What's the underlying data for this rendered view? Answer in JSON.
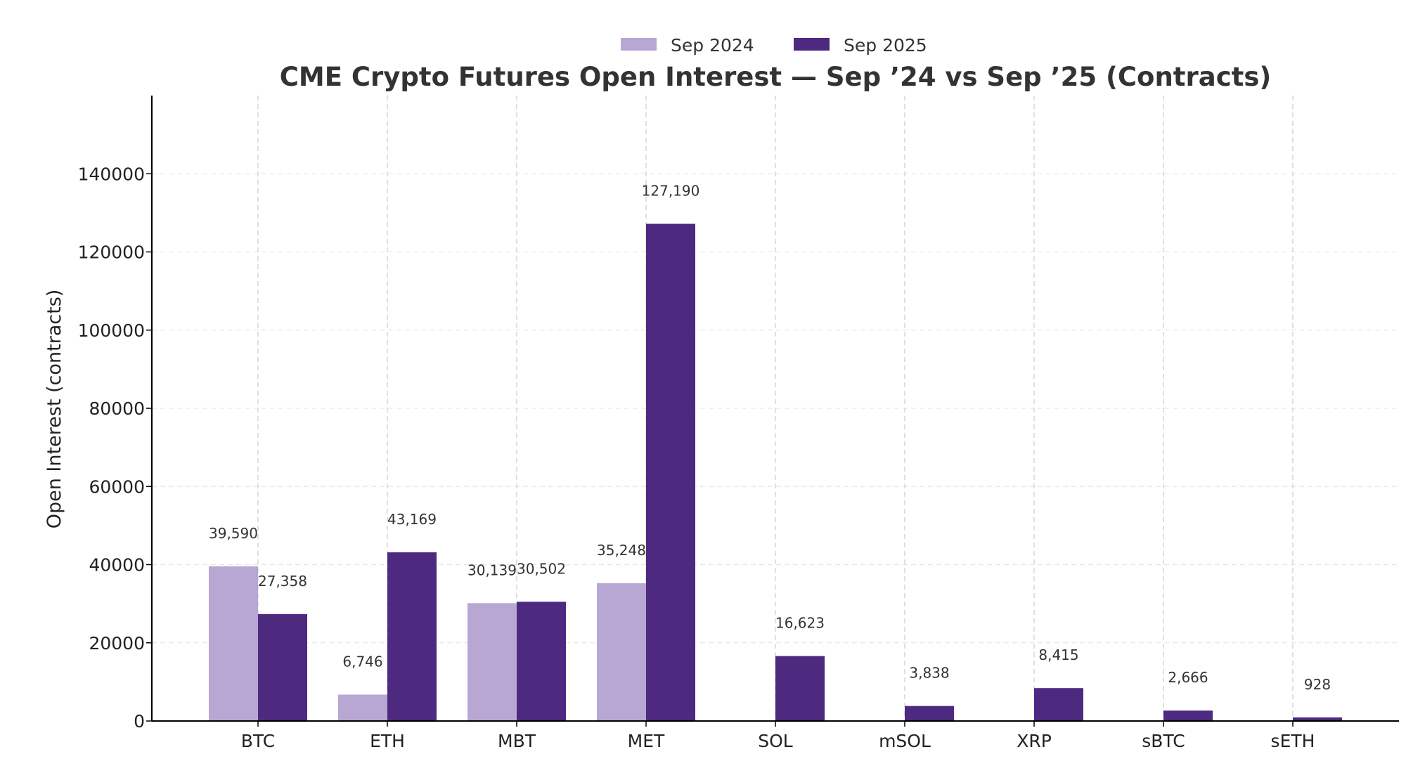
{
  "chart_data": {
    "type": "bar",
    "title": "CME Crypto Futures Open Interest — Sep ’24 vs Sep ’25 (Contracts)",
    "xlabel": "",
    "ylabel": "Open Interest (contracts)",
    "categories": [
      "BTC",
      "ETH",
      "MBT",
      "MET",
      "SOL",
      "mSOL",
      "XRP",
      "sBTC",
      "sETH"
    ],
    "series": [
      {
        "name": "Sep 2024",
        "color": "#b8a6d3",
        "values": [
          39590,
          6746,
          30139,
          35248,
          null,
          null,
          null,
          null,
          null
        ],
        "labels": [
          "39,590",
          "6,746",
          "30,139",
          "35,248",
          null,
          null,
          null,
          null,
          null
        ]
      },
      {
        "name": "Sep 2025",
        "color": "#4d2a80",
        "values": [
          27358,
          43169,
          30502,
          127190,
          16623,
          3838,
          8415,
          2666,
          928
        ],
        "labels": [
          "27,358",
          "43,169",
          "30,502",
          "127,190",
          "16,623",
          "3,838",
          "8,415",
          "2,666",
          "928"
        ]
      }
    ],
    "ylim": [
      0,
      160000
    ],
    "yticks": [
      0,
      20000,
      40000,
      60000,
      80000,
      100000,
      120000,
      140000
    ],
    "ytick_labels": [
      "0",
      "20000",
      "40000",
      "60000",
      "80000",
      "100000",
      "120000",
      "140000"
    ],
    "grid": true,
    "legend_position": "top-center"
  }
}
